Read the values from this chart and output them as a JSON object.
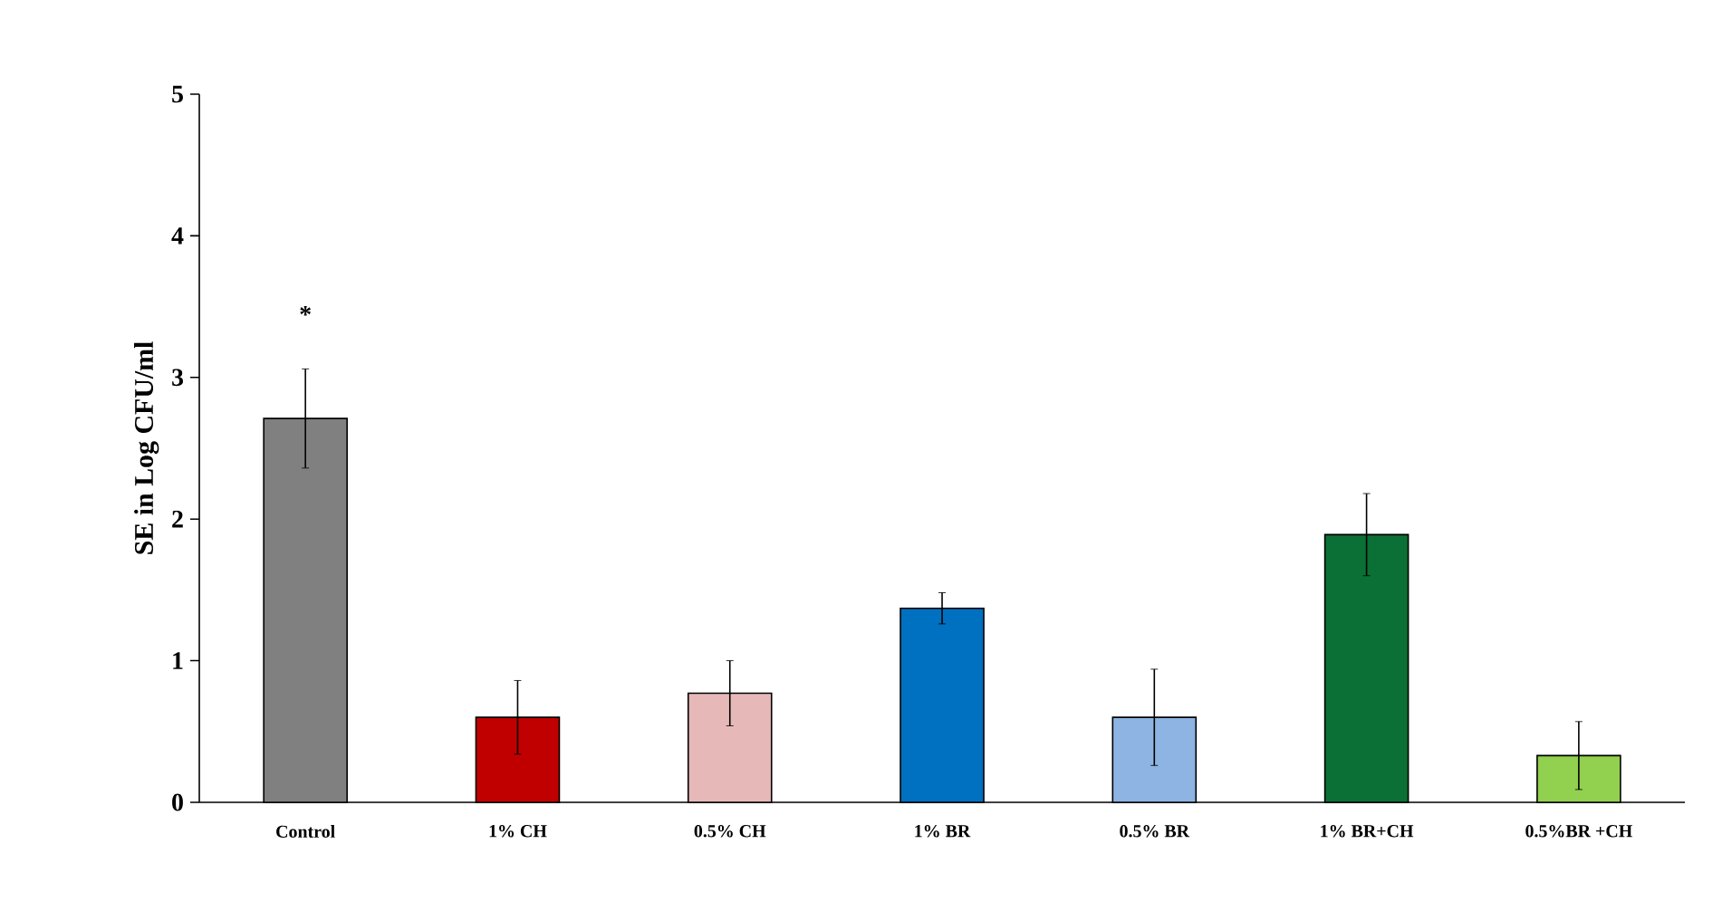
{
  "chart_data": {
    "type": "bar",
    "ylabel": "SE in Log CFU/ml",
    "categories": [
      "Control",
      "1% CH",
      "0.5% CH",
      "1% BR",
      "0.5% BR",
      "1% BR+CH",
      "0.5%BR +CH"
    ],
    "values": [
      2.71,
      0.6,
      0.77,
      1.37,
      0.6,
      1.89,
      0.33
    ],
    "errors": [
      0.35,
      0.26,
      0.23,
      0.11,
      0.34,
      0.29,
      0.24
    ],
    "colors": [
      "#808080",
      "#c00000",
      "#e6b9b8",
      "#0070c0",
      "#8db4e2",
      "#0b7035",
      "#92d050"
    ],
    "ylim": [
      0,
      5
    ],
    "yticks": [
      0,
      1,
      2,
      3,
      4,
      5
    ],
    "annotations": [
      "*"
    ]
  }
}
